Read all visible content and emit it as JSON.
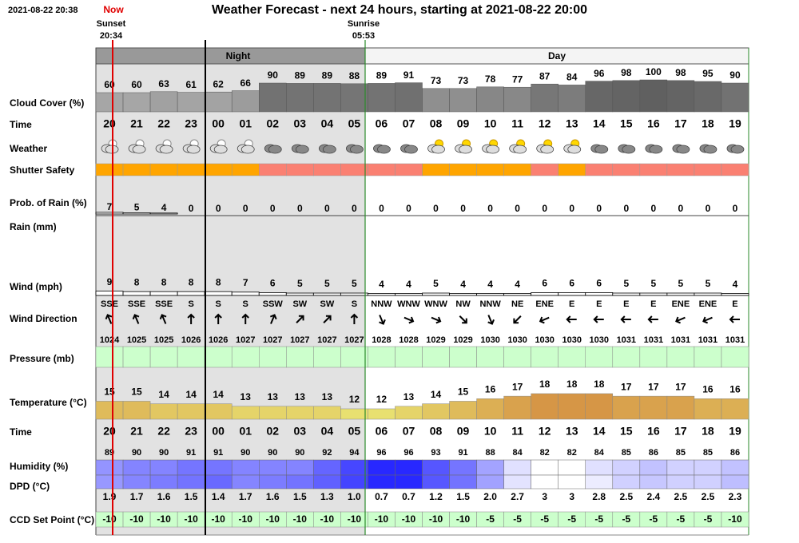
{
  "header": {
    "timestamp": "2021-08-22 20:38",
    "now": "Now",
    "title": "Weather Forecast - next 24 hours, starting at 2021-08-22 20:00",
    "sunset": {
      "label": "Sunset",
      "time": "20:34"
    },
    "sunrise": {
      "label": "Sunrise",
      "time": "05:53"
    }
  },
  "periods": {
    "night": "Night",
    "day": "Day"
  },
  "row_labels": {
    "cloud_cover": "Cloud Cover (%)",
    "time": "Time",
    "weather": "Weather",
    "shutter_safety": "Shutter Safety",
    "rain_probability": "Prob. of Rain (%)",
    "rain": "Rain (mm)",
    "wind": "Wind (mph)",
    "wind_direction": "Wind Direction",
    "pressure": "Pressure (mb)",
    "temperature": "Temperature (°C)",
    "humidity": "Humidity (%)",
    "dpd": "DPD (°C)",
    "ccd_set_point": "CCD Set Point (°C)"
  },
  "hours": [
    "20",
    "21",
    "22",
    "23",
    "00",
    "01",
    "02",
    "03",
    "04",
    "05",
    "06",
    "07",
    "08",
    "09",
    "10",
    "11",
    "12",
    "13",
    "14",
    "15",
    "16",
    "17",
    "18",
    "19"
  ],
  "cloud_cover": [
    60,
    60,
    63,
    61,
    62,
    66,
    90,
    89,
    89,
    88,
    89,
    91,
    73,
    73,
    78,
    77,
    87,
    84,
    96,
    98,
    100,
    98,
    95,
    90
  ],
  "rain_probability": [
    7,
    5,
    4,
    0,
    0,
    0,
    0,
    0,
    0,
    0,
    0,
    0,
    0,
    0,
    0,
    0,
    0,
    0,
    0,
    0,
    0,
    0,
    0,
    0
  ],
  "wind": [
    9,
    8,
    8,
    8,
    8,
    7,
    6,
    5,
    5,
    5,
    4,
    4,
    5,
    4,
    4,
    4,
    6,
    6,
    6,
    5,
    5,
    5,
    5,
    4
  ],
  "wind_direction": [
    "SSE",
    "SSE",
    "SSE",
    "S",
    "S",
    "S",
    "SSW",
    "SW",
    "SW",
    "S",
    "NNW",
    "WNW",
    "WNW",
    "NW",
    "NNW",
    "NE",
    "ENE",
    "E",
    "E",
    "E",
    "E",
    "ENE",
    "ENE",
    "E"
  ],
  "pressure": [
    1024,
    1025,
    1025,
    1026,
    1026,
    1027,
    1027,
    1027,
    1027,
    1027,
    1028,
    1028,
    1029,
    1029,
    1030,
    1030,
    1030,
    1030,
    1030,
    1031,
    1031,
    1031,
    1031,
    1031
  ],
  "temperature": [
    15,
    15,
    14,
    14,
    14,
    13,
    13,
    13,
    13,
    12,
    12,
    13,
    14,
    15,
    16,
    17,
    18,
    18,
    18,
    17,
    17,
    17,
    16,
    16
  ],
  "humidity": [
    89,
    90,
    90,
    91,
    91,
    90,
    90,
    90,
    92,
    94,
    96,
    96,
    93,
    91,
    88,
    84,
    82,
    82,
    84,
    85,
    86,
    85,
    85,
    86
  ],
  "dpd": {
    "values": [
      1.9,
      1.7,
      1.6,
      1.5,
      1.4,
      1.7,
      1.6,
      1.5,
      1.3,
      1.0,
      0.7,
      0.7,
      1.2,
      1.5,
      2.0,
      2.7,
      3,
      3,
      2.8,
      2.5,
      2.4,
      2.5,
      2.5,
      2.3
    ],
    "value_labels": [
      "1.9",
      "1.7",
      "1.6",
      "1.5",
      "1.4",
      "1.7",
      "1.6",
      "1.5",
      "1.3",
      "1.0",
      "0.7",
      "0.7",
      "1.2",
      "1.5",
      "2.0",
      "2.7",
      "3",
      "3",
      "2.8",
      "2.5",
      "2.4",
      "2.5",
      "2.5",
      "2.3"
    ]
  },
  "ccd_set_point": [
    -10,
    -10,
    -10,
    -10,
    -10,
    -10,
    -10,
    -10,
    -10,
    -10,
    -10,
    -10,
    -10,
    -10,
    -5,
    -5,
    -5,
    -5,
    -5,
    -5,
    -5,
    -5,
    -5,
    -10
  ]
}
